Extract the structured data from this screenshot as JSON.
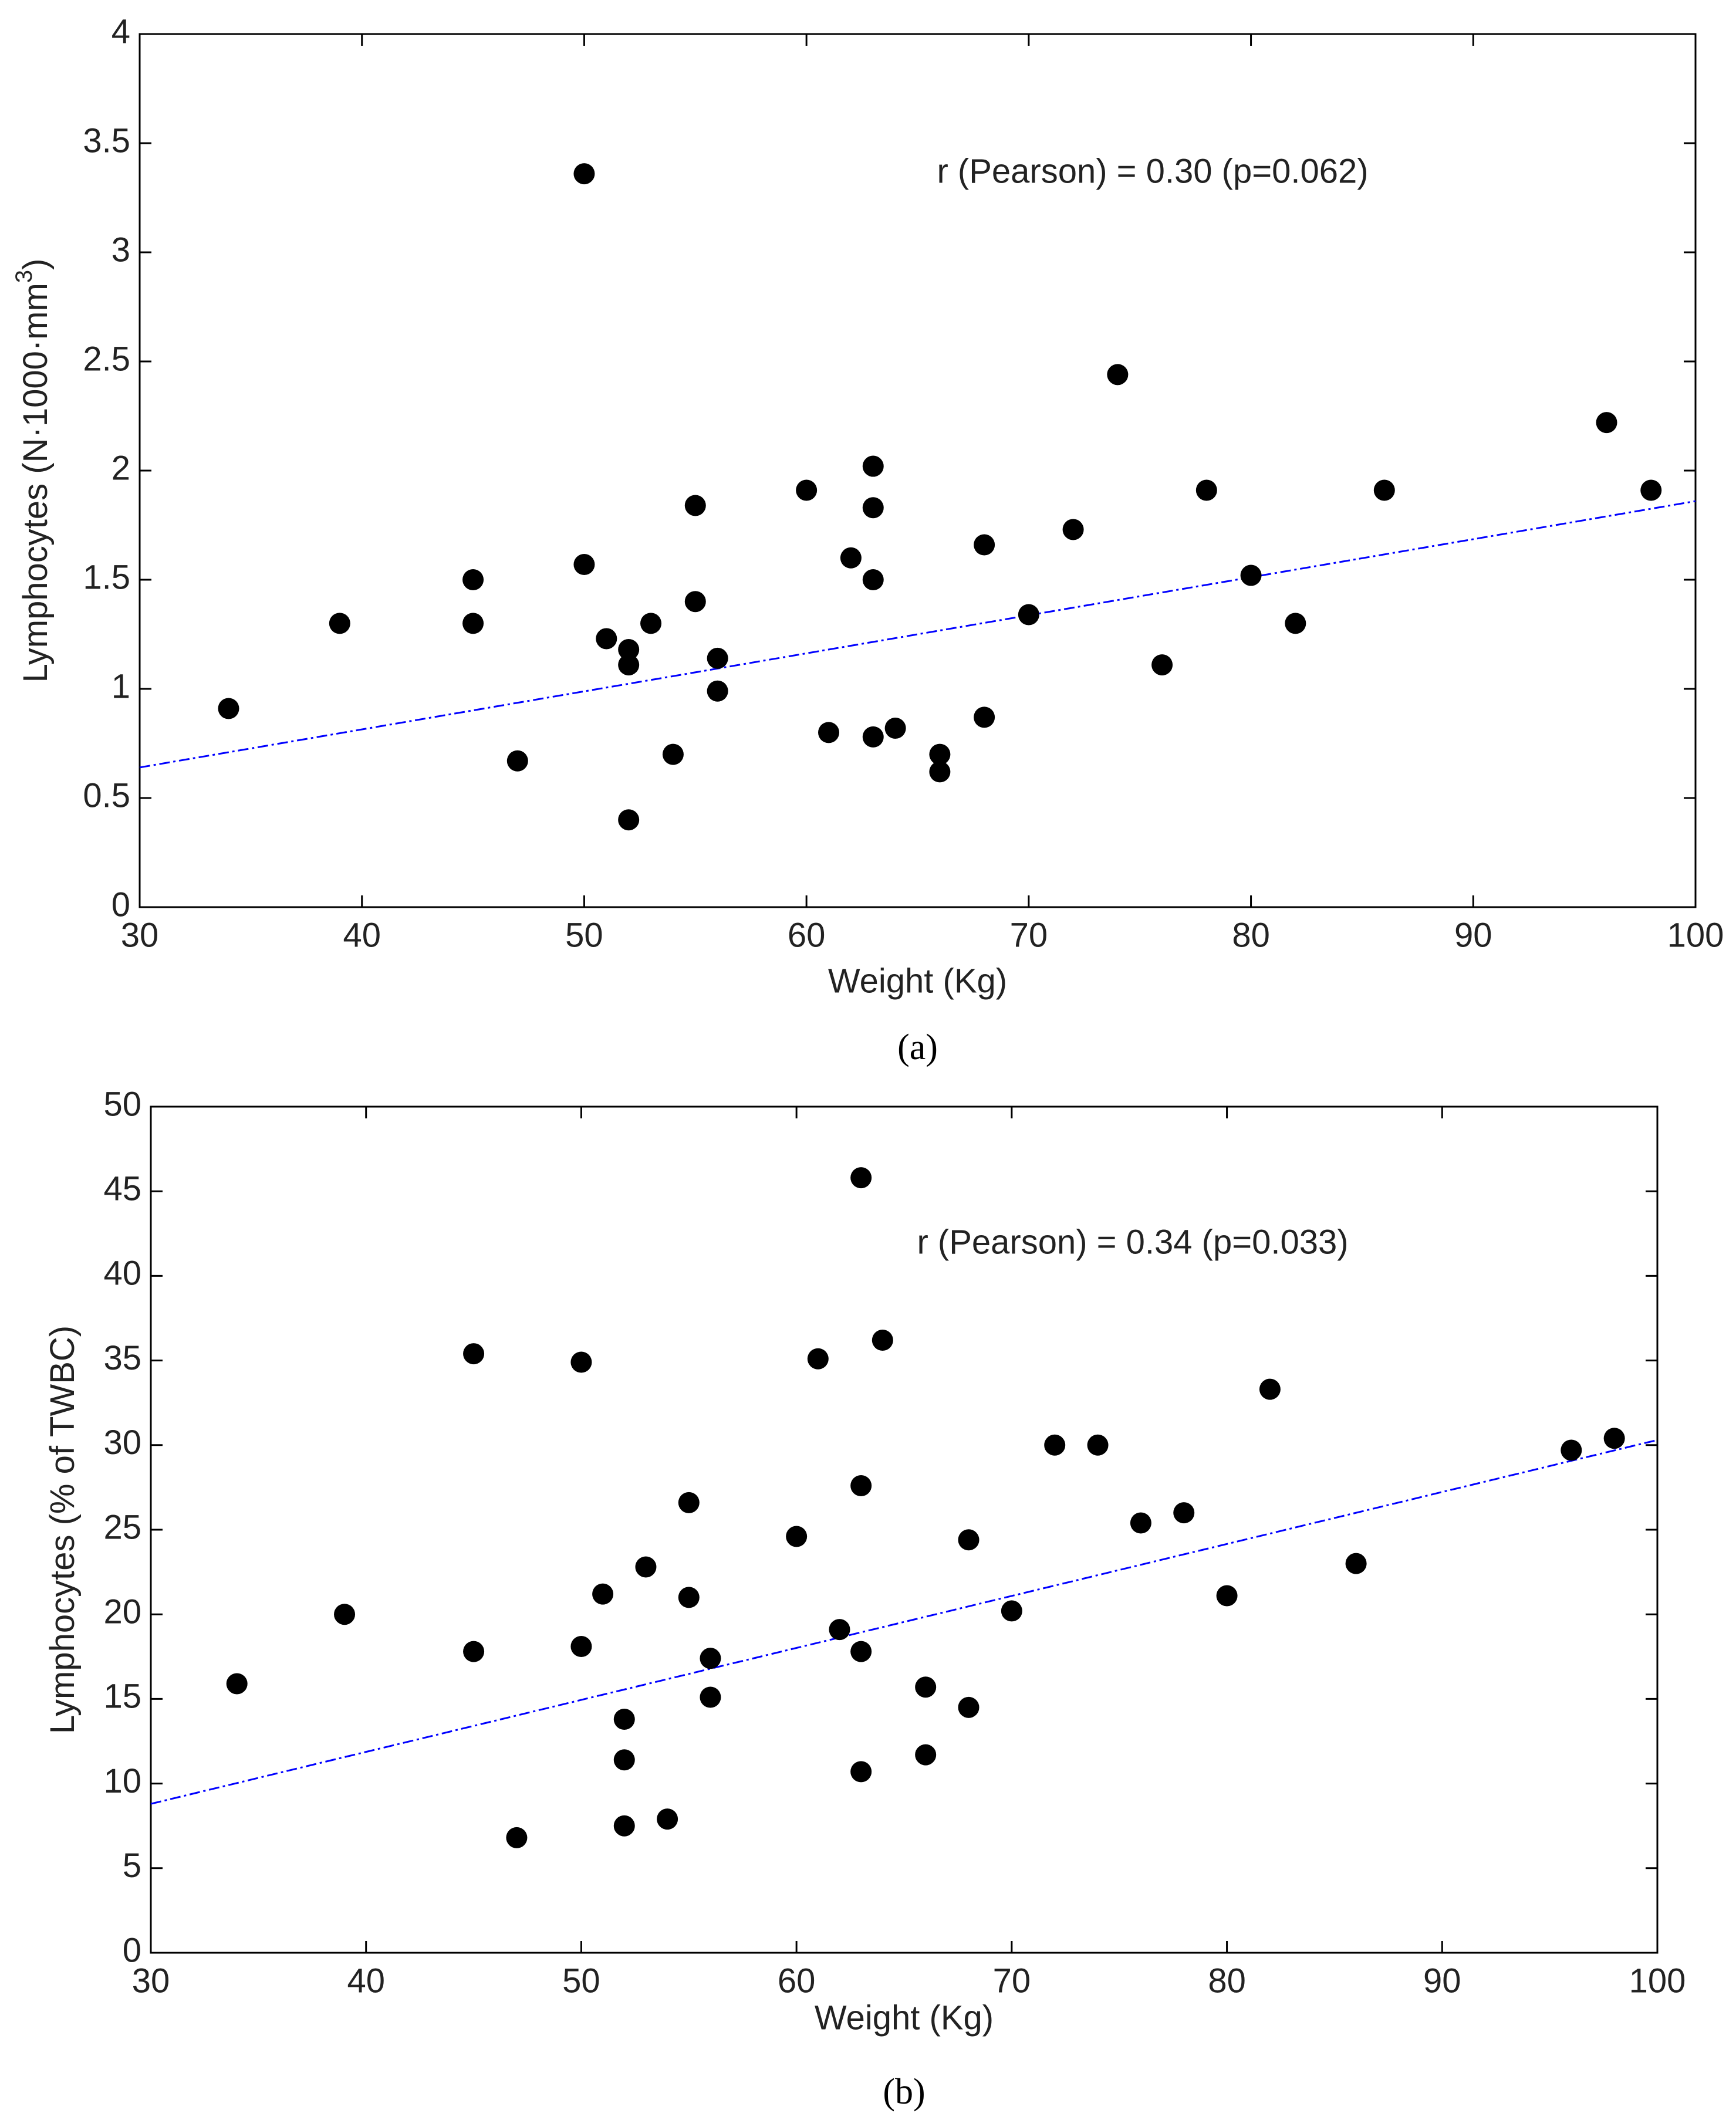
{
  "chart_data": [
    {
      "type": "scatter",
      "caption": "(a)",
      "annotation": "r (Pearson) = 0.30 (p=0.062)",
      "xlabel": "Weight (Kg)",
      "ylabel": [
        "Lymphocytes (N·1000·mm",
        "3",
        ")"
      ],
      "xlim": [
        30,
        100
      ],
      "ylim": [
        0,
        4
      ],
      "xticks": [
        30,
        40,
        50,
        60,
        70,
        80,
        90,
        100
      ],
      "yticks": [
        0,
        0.5,
        1,
        1.5,
        2,
        2.5,
        3,
        3.5,
        4
      ],
      "series": [
        {
          "color": "#000000",
          "x": [
            34,
            39,
            45,
            45,
            47,
            50,
            50,
            51,
            52,
            52,
            52,
            53,
            54,
            55,
            55,
            56,
            56,
            60,
            61,
            62,
            63,
            63,
            63,
            63,
            64,
            66,
            66,
            68,
            68,
            70,
            72,
            74,
            76,
            78,
            80,
            82,
            86,
            96,
            98
          ],
          "values": [
            0.91,
            1.3,
            1.5,
            1.3,
            0.67,
            3.36,
            1.57,
            1.23,
            1.18,
            1.11,
            0.4,
            1.3,
            0.7,
            1.4,
            1.84,
            1.14,
            0.99,
            1.91,
            0.8,
            1.6,
            2.02,
            1.83,
            1.5,
            0.78,
            0.82,
            0.7,
            0.62,
            1.66,
            0.87,
            1.34,
            1.73,
            2.44,
            1.11,
            1.91,
            1.52,
            1.3,
            1.91,
            2.22,
            1.91
          ]
        }
      ],
      "fit": {
        "color": "#0000ff",
        "x": [
          30,
          100
        ],
        "values": [
          0.64,
          1.86
        ]
      }
    },
    {
      "type": "scatter",
      "caption": "(b)",
      "annotation": "r (Pearson) = 0.34 (p=0.033)",
      "xlabel": "Weight (Kg)",
      "ylabel": [
        "Lymphocytes (% of TWBC)"
      ],
      "xlim": [
        30,
        100
      ],
      "ylim": [
        0,
        50
      ],
      "xticks": [
        30,
        40,
        50,
        60,
        70,
        80,
        90,
        100
      ],
      "yticks": [
        0,
        5,
        10,
        15,
        20,
        25,
        30,
        35,
        40,
        45,
        50
      ],
      "series": [
        {
          "color": "#000000",
          "x": [
            34,
            39,
            45,
            45,
            47,
            50,
            50,
            51,
            52,
            52,
            52,
            53,
            54,
            55,
            55,
            56,
            56,
            60,
            61,
            62,
            63,
            63,
            63,
            63,
            64,
            66,
            66,
            68,
            68,
            70,
            72,
            74,
            76,
            78,
            80,
            82,
            86,
            96,
            98
          ],
          "values": [
            15.9,
            20.0,
            35.4,
            17.8,
            6.8,
            34.9,
            18.1,
            21.2,
            13.8,
            11.4,
            7.5,
            22.8,
            7.9,
            26.6,
            21.0,
            17.4,
            15.1,
            24.6,
            35.1,
            19.1,
            45.8,
            27.6,
            17.8,
            10.7,
            36.2,
            15.7,
            11.7,
            24.4,
            14.5,
            20.2,
            30.0,
            30.0,
            25.4,
            26.0,
            21.1,
            33.3,
            23.0,
            29.7,
            30.4
          ]
        }
      ],
      "fit": {
        "color": "#0000ff",
        "x": [
          30,
          100
        ],
        "values": [
          8.8,
          30.3
        ]
      }
    }
  ]
}
